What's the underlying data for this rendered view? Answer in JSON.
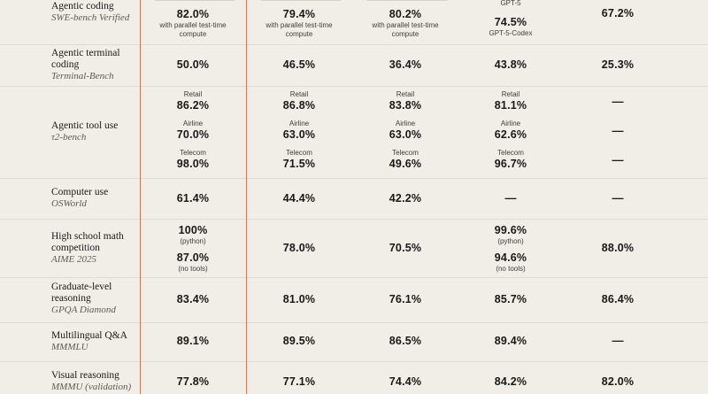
{
  "rows": {
    "swe": {
      "name": "Agentic coding",
      "sub": "SWE-bench Verified",
      "c1": "82.0%",
      "c1_note": "with parallel test-time compute",
      "c2": "79.4%",
      "c2_note": "with parallel test-time compute",
      "c3": "80.2%",
      "c3_note": "with parallel test-time compute",
      "c4_top": "GPT-5",
      "c4": "74.5%",
      "c4_bottom": "GPT-5-Codex",
      "c5": "67.2%"
    },
    "terminal": {
      "name": "Agentic terminal coding",
      "sub": "Terminal-Bench",
      "c1": "50.0%",
      "c2": "46.5%",
      "c3": "36.4%",
      "c4": "43.8%",
      "c5": "25.3%"
    },
    "tau": {
      "name": "Agentic tool use",
      "sub": "τ2-bench",
      "retail_label": "Retail",
      "airline_label": "Airline",
      "telecom_label": "Telecom",
      "c1": {
        "retail": "86.2%",
        "airline": "70.0%",
        "telecom": "98.0%"
      },
      "c2": {
        "retail": "86.8%",
        "airline": "63.0%",
        "telecom": "71.5%"
      },
      "c3": {
        "retail": "83.8%",
        "airline": "63.0%",
        "telecom": "49.6%"
      },
      "c4": {
        "retail": "81.1%",
        "airline": "62.6%",
        "telecom": "96.7%"
      },
      "c5": {
        "retail": "—",
        "airline": "—",
        "telecom": "—"
      }
    },
    "osworld": {
      "name": "Computer use",
      "sub": "OSWorld",
      "c1": "61.4%",
      "c2": "44.4%",
      "c3": "42.2%",
      "c4": "—",
      "c5": "—"
    },
    "aime": {
      "name": "High school math competition",
      "sub": "AIME 2025",
      "c1_a": "100%",
      "c1_a_note": "(python)",
      "c1_b": "87.0%",
      "c1_b_note": "(no tools)",
      "c2": "78.0%",
      "c3": "70.5%",
      "c4_a": "99.6%",
      "c4_a_note": "(python)",
      "c4_b": "94.6%",
      "c4_b_note": "(no tools)",
      "c5": "88.0%"
    },
    "gpqa": {
      "name": "Graduate-level reasoning",
      "sub": "GPQA Diamond",
      "c1": "83.4%",
      "c2": "81.0%",
      "c3": "76.1%",
      "c4": "85.7%",
      "c5": "86.4%"
    },
    "mmmlu": {
      "name": "Multilingual Q&A",
      "sub": "MMMLU",
      "c1": "89.1%",
      "c2": "89.5%",
      "c3": "86.5%",
      "c4": "89.4%",
      "c5": "—"
    },
    "mmmu": {
      "name": "Visual reasoning",
      "sub": "MMMU (validation)",
      "c1": "77.8%",
      "c2": "77.1%",
      "c3": "74.4%",
      "c4": "84.2%",
      "c5": "82.0%"
    }
  },
  "colors": {
    "background": "#f0eee6",
    "accent_line": "#cc785c",
    "divider": "#dedbd2"
  }
}
